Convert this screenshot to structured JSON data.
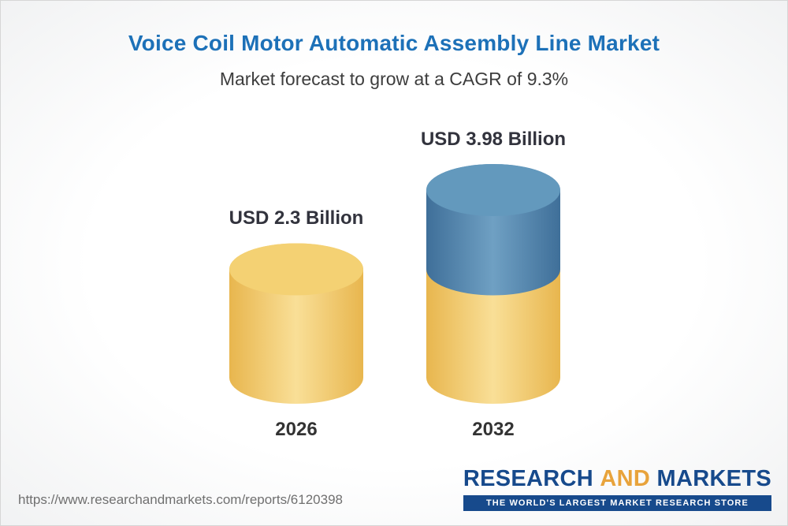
{
  "header": {
    "title": "Voice Coil Motor Automatic Assembly Line Market",
    "subtitle": "Market forecast to grow at a CAGR of 9.3%"
  },
  "chart_data": {
    "type": "bar",
    "subtype": "3d-cylinder",
    "title": "Voice Coil Motor Automatic Assembly Line Market",
    "subtitle": "Market forecast to grow at a CAGR of 9.3%",
    "categories": [
      "2026",
      "2032"
    ],
    "values": [
      2.3,
      3.98
    ],
    "value_labels": [
      "USD 2.3 Billion",
      "USD 3.98 Billion"
    ],
    "unit": "USD Billion",
    "cagr_percent": 9.3,
    "xlabel": "",
    "ylabel": "",
    "ylim": [
      0,
      3.98
    ],
    "grid": false,
    "legend": false,
    "colors": {
      "yellow_dark": "#E8B64E",
      "yellow_light": "#F9DF97",
      "yellow_top": "#F4D173",
      "blue_dark": "#3F6F99",
      "blue_light": "#6FA0C3",
      "blue_top": "#6399BD"
    }
  },
  "theme": {
    "title_blue": "#1D71B8",
    "text_dark": "#333333",
    "logo_blue": "#174A8C",
    "logo_gold": "#E8A33B",
    "url_gray": "#707070"
  },
  "footer": {
    "url": "https://www.researchandmarkets.com/reports/6120398",
    "logo": {
      "research": "RESEARCH",
      "and": "AND",
      "markets": "MARKETS",
      "tagline": "THE WORLD'S LARGEST MARKET RESEARCH STORE"
    }
  }
}
